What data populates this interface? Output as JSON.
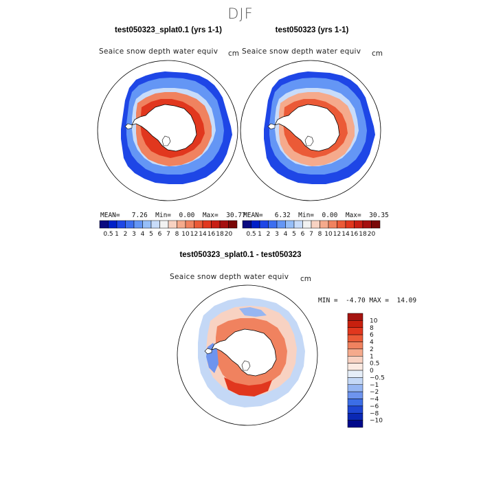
{
  "season": "DJF",
  "panels": [
    {
      "title": "test050323_splat0.1 (yrs 1-1)",
      "variable": "Seaice snow depth water equiv",
      "units": "cm",
      "stats": {
        "mean_label": "MEAN=",
        "mean": "7.26",
        "min_label": "Min=",
        "min": "0.00",
        "max_label": "Max=",
        "max": "30.77"
      }
    },
    {
      "title": "test050323 (yrs 1-1)",
      "variable": "Seaice snow depth water equiv",
      "units": "cm",
      "stats": {
        "mean_label": "MEAN=",
        "mean": "6.32",
        "min_label": "Min=",
        "min": "0.00",
        "max_label": "Max=",
        "max": "30.35"
      }
    }
  ],
  "diff": {
    "title": "test050323_splat0.1 - test050323",
    "variable": "Seaice snow depth water equiv",
    "units": "cm",
    "stats": {
      "min_label": "MIN =",
      "min": "-4.70",
      "max_label": "MAX =",
      "max": "14.09"
    }
  },
  "chart_data": [
    {
      "type": "heatmap",
      "projection": "south-polar-stereographic",
      "title": "test050323_splat0.1 (yrs 1-1)",
      "variable": "Seaice snow depth water equiv",
      "units": "cm",
      "colorbar": {
        "levels": [
          "0.5",
          "1",
          "2",
          "3",
          "4",
          "5",
          "6",
          "7",
          "8",
          "10",
          "12",
          "14",
          "16",
          "18",
          "20"
        ],
        "colors": [
          "#0a0a80",
          "#0020c8",
          "#1e46e6",
          "#3c6ef0",
          "#6496f5",
          "#96bef8",
          "#c8dcfa",
          "#f2f2f2",
          "#f8d2c2",
          "#f5aa8c",
          "#f0825f",
          "#eb5a37",
          "#e1371e",
          "#c81e14",
          "#a50f0f",
          "#7a0808"
        ]
      },
      "stats": {
        "mean": 7.26,
        "min": 0.0,
        "max": 30.77
      }
    },
    {
      "type": "heatmap",
      "projection": "south-polar-stereographic",
      "title": "test050323 (yrs 1-1)",
      "variable": "Seaice snow depth water equiv",
      "units": "cm",
      "colorbar": {
        "levels": [
          "0.5",
          "1",
          "2",
          "3",
          "4",
          "5",
          "6",
          "7",
          "8",
          "10",
          "12",
          "14",
          "16",
          "18",
          "20"
        ],
        "colors": [
          "#0a0a80",
          "#0020c8",
          "#1e46e6",
          "#3c6ef0",
          "#6496f5",
          "#96bef8",
          "#c8dcfa",
          "#f2f2f2",
          "#f8d2c2",
          "#f5aa8c",
          "#f0825f",
          "#eb5a37",
          "#e1371e",
          "#c81e14",
          "#a50f0f",
          "#7a0808"
        ]
      },
      "stats": {
        "mean": 6.32,
        "min": 0.0,
        "max": 30.35
      }
    },
    {
      "type": "heatmap",
      "projection": "south-polar-stereographic",
      "title": "test050323_splat0.1 - test050323",
      "variable": "Seaice snow depth water equiv",
      "units": "cm",
      "colorbar": {
        "orientation": "vertical",
        "levels": [
          "10",
          "8",
          "6",
          "4",
          "2",
          "1",
          "0.5",
          "0",
          "−0.5",
          "−1",
          "−2",
          "−4",
          "−6",
          "−8",
          "−10"
        ],
        "colors": [
          "#a51410",
          "#c8200e",
          "#e1371e",
          "#eb5a37",
          "#f0825f",
          "#f5aa8c",
          "#f8d2c2",
          "#fbeae2",
          "#e6eef8",
          "#c4d8f6",
          "#96b6f2",
          "#6e94ee",
          "#3c6ee6",
          "#1e46d2",
          "#0a28b4",
          "#00088a"
        ]
      },
      "stats": {
        "min": -4.7,
        "max": 14.09
      }
    }
  ]
}
